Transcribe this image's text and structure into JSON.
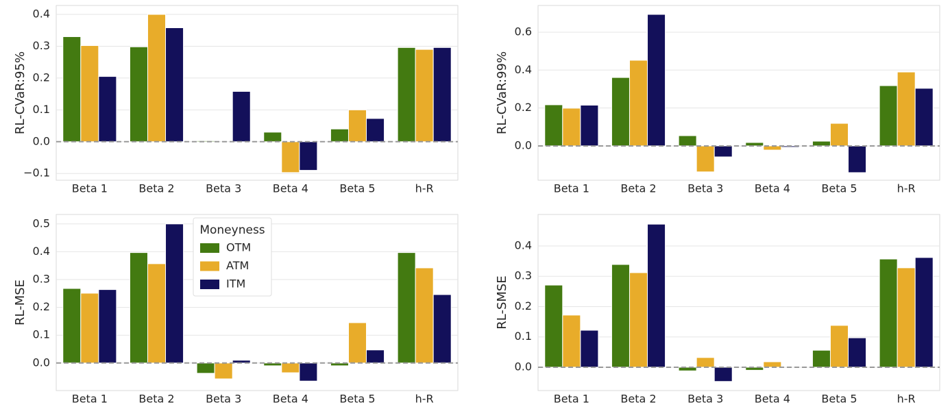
{
  "chart_data": [
    {
      "type": "bar",
      "ylabel": "RL-CVaR:95%",
      "categories": [
        "Beta 1",
        "Beta 2",
        "Beta 3",
        "Beta 4",
        "Beta 5",
        "h-R"
      ],
      "series": [
        {
          "name": "OTM",
          "color": "#437a11",
          "values": [
            0.33,
            0.298,
            0.003,
            0.03,
            0.04,
            0.296
          ]
        },
        {
          "name": "ATM",
          "color": "#e8ac2a",
          "values": [
            0.302,
            0.4,
            0.0,
            -0.097,
            0.1,
            0.29
          ]
        },
        {
          "name": "ITM",
          "color": "#13105a",
          "values": [
            0.205,
            0.358,
            0.158,
            -0.09,
            0.073,
            0.296
          ]
        }
      ],
      "ylim": [
        -0.121,
        0.428
      ],
      "yticks": [
        {
          "value": -0.1,
          "label": "−0.1"
        },
        {
          "value": 0,
          "label": "0.0"
        },
        0.1,
        0.2,
        0.3,
        0.4
      ],
      "grid": true,
      "hline": 0
    },
    {
      "type": "bar",
      "ylabel": "RL-CVaR:99%",
      "categories": [
        "Beta 1",
        "Beta 2",
        "Beta 3",
        "Beta 4",
        "Beta 5",
        "h-R"
      ],
      "series": [
        {
          "name": "OTM",
          "color": "#437a11",
          "values": [
            0.217,
            0.361,
            0.054,
            0.018,
            0.025,
            0.318
          ]
        },
        {
          "name": "ATM",
          "color": "#e8ac2a",
          "values": [
            0.199,
            0.452,
            -0.137,
            -0.022,
            0.119,
            0.39
          ]
        },
        {
          "name": "ITM",
          "color": "#13105a",
          "values": [
            0.215,
            0.694,
            -0.058,
            -0.007,
            -0.141,
            0.304
          ]
        }
      ],
      "ylim": [
        -0.181,
        0.741
      ],
      "yticks": [
        {
          "value": 0,
          "label": "0.0"
        },
        0.2,
        0.4,
        0.6
      ],
      "grid": true,
      "hline": 0
    },
    {
      "type": "bar",
      "ylabel": "RL-MSE",
      "categories": [
        "Beta 1",
        "Beta 2",
        "Beta 3",
        "Beta 4",
        "Beta 5",
        "h-R"
      ],
      "series": [
        {
          "name": "OTM",
          "color": "#437a11",
          "values": [
            0.268,
            0.397,
            -0.037,
            -0.01,
            -0.01,
            0.397
          ]
        },
        {
          "name": "ATM",
          "color": "#e8ac2a",
          "values": [
            0.251,
            0.357,
            -0.057,
            -0.035,
            0.145,
            0.342
          ]
        },
        {
          "name": "ITM",
          "color": "#13105a",
          "values": [
            0.264,
            0.5,
            0.01,
            -0.065,
            0.047,
            0.246
          ]
        }
      ],
      "ylim": [
        -0.099,
        0.534
      ],
      "yticks": [
        {
          "value": 0,
          "label": "0.0"
        },
        0.1,
        0.2,
        0.3,
        0.4,
        0.5
      ],
      "grid": true,
      "hline": 0,
      "legend": "upper center",
      "legend_title": "Moneyness"
    },
    {
      "type": "bar",
      "ylabel": "RL-SMSE",
      "categories": [
        "Beta 1",
        "Beta 2",
        "Beta 3",
        "Beta 4",
        "Beta 5",
        "h-R"
      ],
      "series": [
        {
          "name": "OTM",
          "color": "#437a11",
          "values": [
            0.271,
            0.339,
            -0.012,
            -0.01,
            0.056,
            0.357
          ]
        },
        {
          "name": "ATM",
          "color": "#e8ac2a",
          "values": [
            0.172,
            0.312,
            0.032,
            0.018,
            0.138,
            0.328
          ]
        },
        {
          "name": "ITM",
          "color": "#13105a",
          "values": [
            0.122,
            0.472,
            -0.047,
            0.0,
            0.097,
            0.362
          ]
        }
      ],
      "ylim": [
        -0.077,
        0.504
      ],
      "yticks": [
        {
          "value": 0,
          "label": "0.0"
        },
        0.1,
        0.2,
        0.3,
        0.4
      ],
      "grid": true,
      "hline": 0
    }
  ]
}
